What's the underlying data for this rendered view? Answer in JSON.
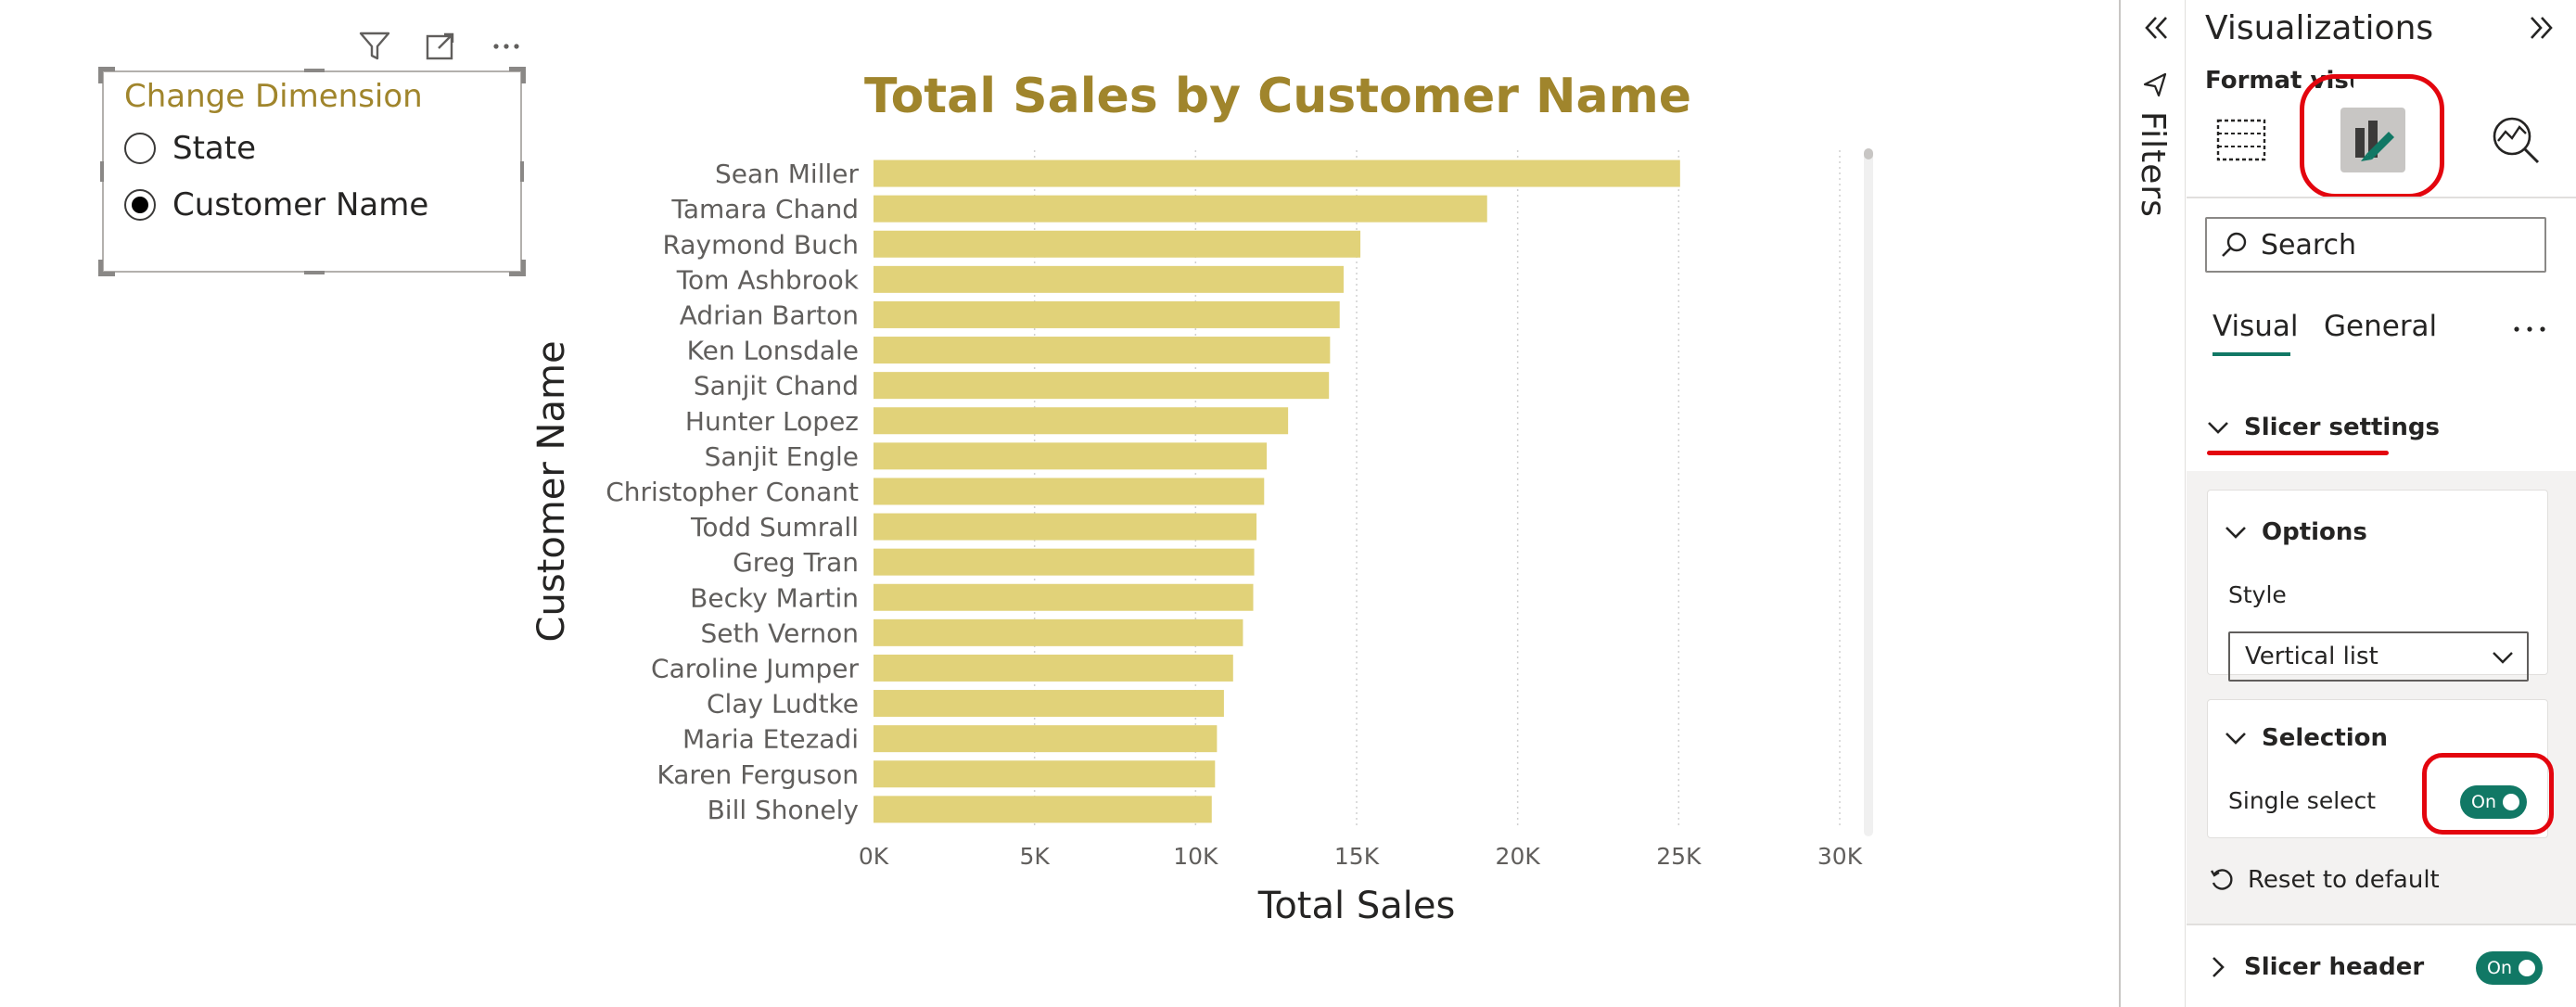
{
  "slicer": {
    "title": "Change Dimension",
    "options": [
      {
        "label": "State",
        "selected": false
      },
      {
        "label": "Customer Name",
        "selected": true
      }
    ],
    "toolbar_icons": [
      "filter-icon",
      "focus-mode-icon",
      "more-options-icon"
    ]
  },
  "chart_data": {
    "type": "bar",
    "orientation": "horizontal",
    "title": "Total Sales by Customer Name",
    "xlabel": "Total Sales",
    "ylabel": "Customer Name",
    "categories": [
      "Sean Miller",
      "Tamara Chand",
      "Raymond Buch",
      "Tom Ashbrook",
      "Adrian Barton",
      "Ken Lonsdale",
      "Sanjit Chand",
      "Hunter Lopez",
      "Sanjit Engle",
      "Christopher Conant",
      "Todd Sumrall",
      "Greg Tran",
      "Becky Martin",
      "Seth Vernon",
      "Caroline Jumper",
      "Clay Ludtke",
      "Maria Etezadi",
      "Karen Ferguson",
      "Bill Shonely"
    ],
    "values": [
      25043,
      19052,
      15117,
      14596,
      14474,
      14175,
      14142,
      12873,
      12209,
      12129,
      11892,
      11820,
      11790,
      11471,
      11165,
      10880,
      10663,
      10604,
      10502
    ],
    "xlim": [
      0,
      30000
    ],
    "xticks": [
      "0K",
      "5K",
      "10K",
      "15K",
      "20K",
      "25K",
      "30K"
    ],
    "bar_color": "#e1d279",
    "title_color": "#a0852c",
    "grid": true
  },
  "filters_pane": {
    "label": "Filters"
  },
  "viz_pane": {
    "title": "Visualizations",
    "subtitle": "Format visual",
    "search_placeholder": "Search",
    "tabs": [
      "Visual",
      "General"
    ],
    "active_tab": "Visual",
    "sections": {
      "slicer_settings": "Slicer settings",
      "options": "Options",
      "style_label": "Style",
      "style_value": "Vertical list",
      "selection": "Selection",
      "single_select_label": "Single select",
      "single_select_value": "On",
      "reset": "Reset to default",
      "slicer_header": "Slicer header",
      "slicer_header_value": "On"
    },
    "accent_color": "#117865",
    "annotation_color": "#e3050e"
  }
}
